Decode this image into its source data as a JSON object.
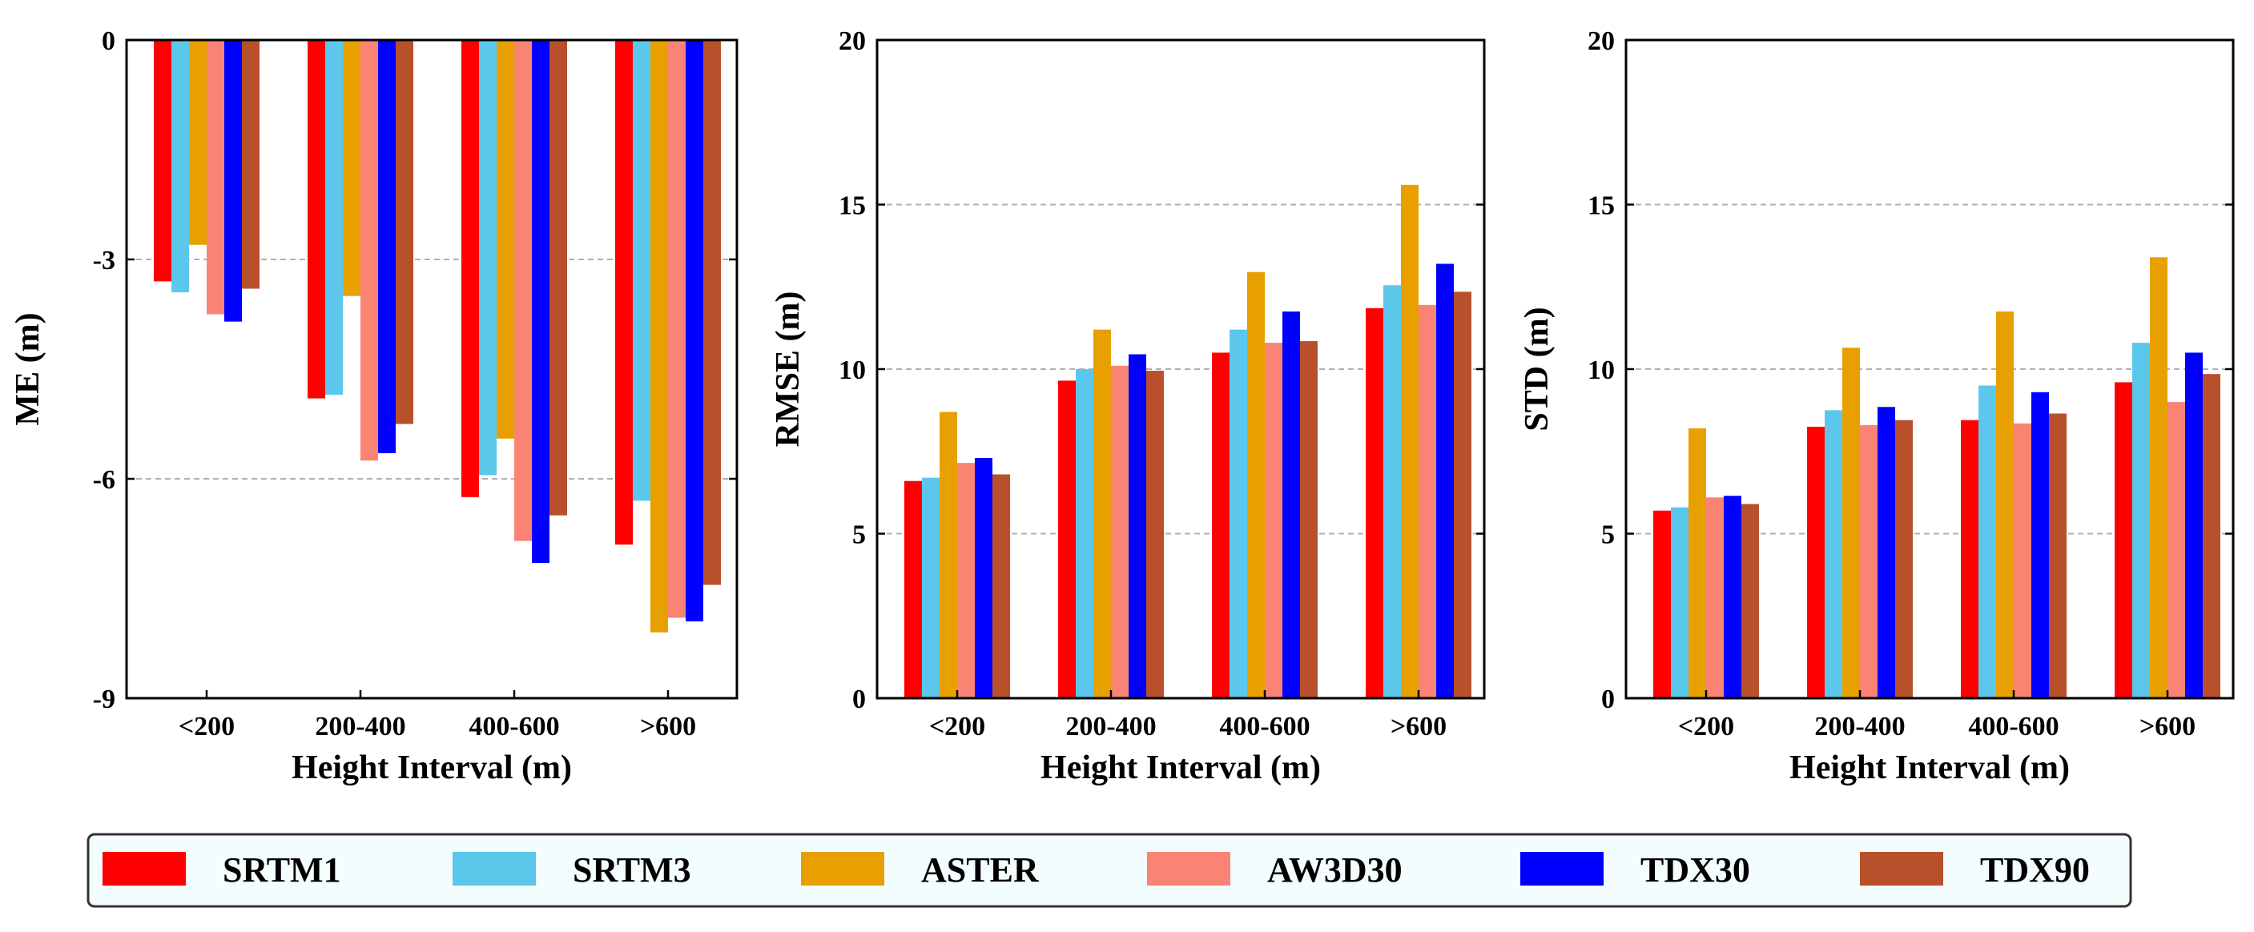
{
  "chart_data": [
    {
      "type": "bar",
      "ylabel": "ME (m)",
      "xlabel": "Height Interval (m)",
      "categories": [
        "<200",
        "200-400",
        "400-600",
        ">600"
      ],
      "ylim": [
        -9,
        0
      ],
      "yticks": [
        0,
        -3,
        -6,
        -9
      ],
      "grid_values": [
        -3,
        -6
      ],
      "series": [
        {
          "name": "SRTM1",
          "values": [
            -3.3,
            -4.9,
            -6.25,
            -6.9
          ]
        },
        {
          "name": "SRTM3",
          "values": [
            -3.45,
            -4.85,
            -5.95,
            -6.3
          ]
        },
        {
          "name": "ASTER",
          "values": [
            -2.8,
            -3.5,
            -5.45,
            -8.1
          ]
        },
        {
          "name": "AW3D30",
          "values": [
            -3.75,
            -5.75,
            -6.85,
            -7.9
          ]
        },
        {
          "name": "TDX30",
          "values": [
            -3.85,
            -5.65,
            -7.15,
            -7.95
          ]
        },
        {
          "name": "TDX90",
          "values": [
            -3.4,
            -5.25,
            -6.5,
            -7.45
          ]
        }
      ]
    },
    {
      "type": "bar",
      "ylabel": "RMSE (m)",
      "xlabel": "Height Interval (m)",
      "categories": [
        "<200",
        "200-400",
        "400-600",
        ">600"
      ],
      "ylim": [
        0,
        20
      ],
      "yticks": [
        0,
        5,
        10,
        15,
        20
      ],
      "grid_values": [
        5,
        10,
        15
      ],
      "series": [
        {
          "name": "SRTM1",
          "values": [
            6.6,
            9.65,
            10.5,
            11.85
          ]
        },
        {
          "name": "SRTM3",
          "values": [
            6.7,
            10.0,
            11.2,
            12.55
          ]
        },
        {
          "name": "ASTER",
          "values": [
            8.7,
            11.2,
            12.95,
            15.6
          ]
        },
        {
          "name": "AW3D30",
          "values": [
            7.15,
            10.1,
            10.8,
            11.95
          ]
        },
        {
          "name": "TDX30",
          "values": [
            7.3,
            10.45,
            11.75,
            13.2
          ]
        },
        {
          "name": "TDX90",
          "values": [
            6.8,
            9.95,
            10.85,
            12.35
          ]
        }
      ]
    },
    {
      "type": "bar",
      "ylabel": "STD (m)",
      "xlabel": "Height Interval (m)",
      "categories": [
        "<200",
        "200-400",
        "400-600",
        ">600"
      ],
      "ylim": [
        0,
        20
      ],
      "yticks": [
        0,
        5,
        10,
        15,
        20
      ],
      "grid_values": [
        5,
        10,
        15
      ],
      "series": [
        {
          "name": "SRTM1",
          "values": [
            5.7,
            8.25,
            8.45,
            9.6
          ]
        },
        {
          "name": "SRTM3",
          "values": [
            5.8,
            8.75,
            9.5,
            10.8
          ]
        },
        {
          "name": "ASTER",
          "values": [
            8.2,
            10.65,
            11.75,
            13.4
          ]
        },
        {
          "name": "AW3D30",
          "values": [
            6.1,
            8.3,
            8.35,
            9.0
          ]
        },
        {
          "name": "TDX30",
          "values": [
            6.15,
            8.85,
            9.3,
            10.5
          ]
        },
        {
          "name": "TDX90",
          "values": [
            5.9,
            8.45,
            8.65,
            9.85
          ]
        }
      ]
    }
  ],
  "series_colors": {
    "SRTM1": "#ff0000",
    "SRTM3": "#5bc8eb",
    "ASTER": "#e8a000",
    "AW3D30": "#f98474",
    "TDX30": "#0000ff",
    "TDX90": "#b8502c"
  },
  "legend": {
    "placement": "bottom",
    "background": "#f3fdfd",
    "items": [
      "SRTM1",
      "SRTM3",
      "ASTER",
      "AW3D30",
      "TDX30",
      "TDX90"
    ]
  }
}
